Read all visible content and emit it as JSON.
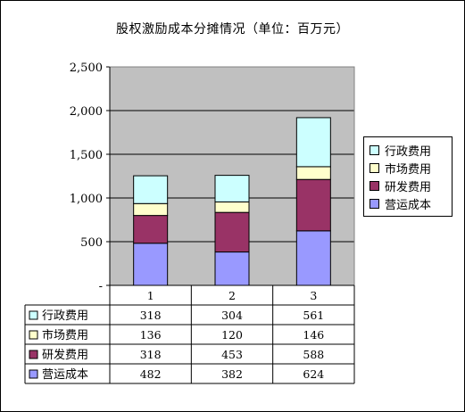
{
  "chart_data": {
    "type": "bar",
    "stacked": true,
    "title": "股权激励成本分摊情况（单位：百万元）",
    "categories": [
      "1",
      "2",
      "3"
    ],
    "ylim": [
      0,
      2500
    ],
    "yticks": [
      0,
      500,
      1000,
      1500,
      2000,
      2500
    ],
    "ytick_labels": [
      "-",
      "500",
      "1,000",
      "1,500",
      "2,000",
      "2,500"
    ],
    "grid": true,
    "legend_position": "right",
    "series": [
      {
        "name": "营运成本",
        "values": [
          482,
          382,
          624
        ],
        "color": "#9999ff"
      },
      {
        "name": "研发费用",
        "values": [
          318,
          453,
          588
        ],
        "color": "#993366"
      },
      {
        "name": "市场费用",
        "values": [
          136,
          120,
          146
        ],
        "color": "#ffffcc"
      },
      {
        "name": "行政费用",
        "values": [
          318,
          304,
          561
        ],
        "color": "#ccffff"
      }
    ],
    "plot_bg": "#c0c0c0"
  }
}
